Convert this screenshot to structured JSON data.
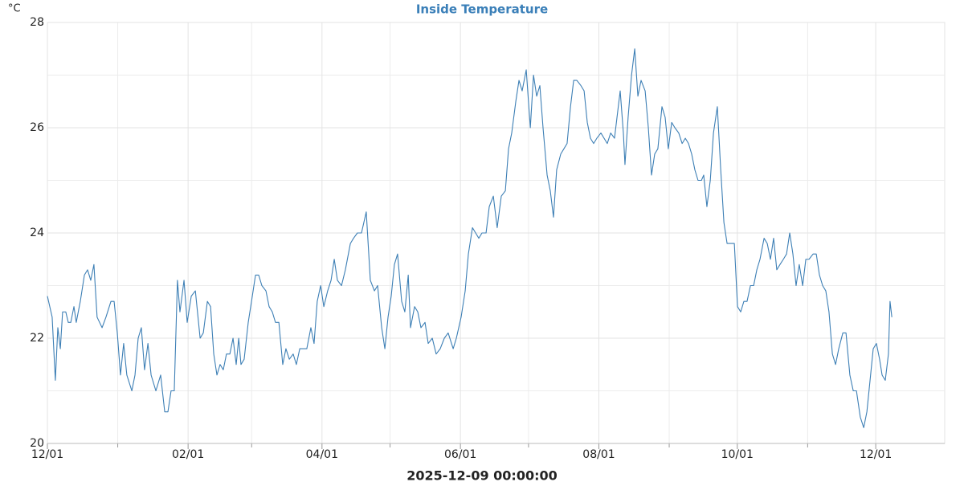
{
  "chart_data": {
    "type": "line",
    "title": "Inside Temperature",
    "y_label": "°C",
    "x_label": "2025-12-09 00:00:00",
    "color": "#3d7fb5",
    "grid": true,
    "xlim": [
      0,
      395.4
    ],
    "ylim": [
      20,
      28
    ],
    "yticks": [
      20,
      22,
      24,
      26,
      28
    ],
    "yminor_ticks": [
      21,
      23,
      25,
      27
    ],
    "xticks": [
      {
        "value": 0,
        "label": "12/01"
      },
      {
        "value": 62,
        "label": "02/01"
      },
      {
        "value": 121,
        "label": "04/01"
      },
      {
        "value": 182,
        "label": "06/01"
      },
      {
        "value": 243,
        "label": "08/01"
      },
      {
        "value": 304,
        "label": "10/01"
      },
      {
        "value": 365,
        "label": "12/01"
      }
    ],
    "xminor_ticks": [
      31,
      90,
      151,
      212,
      274,
      335
    ],
    "x": [
      0,
      2.1,
      3.5,
      4.6,
      5.7,
      6.7,
      8.1,
      9.2,
      10.3,
      11.7,
      12.7,
      14.5,
      16.3,
      17.7,
      19.1,
      20.5,
      21.9,
      24.1,
      25.8,
      28.0,
      29.4,
      30.8,
      32.2,
      33.6,
      35.0,
      37.2,
      38.6,
      40.0,
      41.4,
      42.8,
      44.3,
      45.7,
      47.8,
      49.9,
      51.7,
      53.1,
      54.5,
      55.9,
      57.3,
      58.4,
      60.2,
      61.6,
      63.4,
      65.2,
      67.3,
      68.7,
      70.5,
      71.9,
      73.3,
      74.7,
      76.1,
      77.5,
      78.9,
      80.4,
      81.8,
      83.2,
      84.3,
      85.3,
      86.7,
      88.5,
      90.3,
      91.7,
      93.1,
      94.5,
      96.3,
      97.7,
      99.1,
      100.5,
      102.0,
      103.7,
      105.1,
      106.6,
      108.3,
      109.7,
      111.2,
      112.9,
      114.3,
      116.1,
      117.5,
      118.9,
      120.4,
      121.8,
      123.5,
      125.0,
      126.4,
      127.8,
      129.6,
      131.3,
      133.5,
      134.9,
      136.6,
      138.4,
      140.5,
      142.3,
      144.1,
      145.5,
      147.3,
      148.7,
      150.1,
      151.5,
      152.9,
      154.3,
      156.1,
      157.5,
      159.0,
      160.0,
      161.8,
      163.2,
      164.6,
      166.4,
      167.8,
      169.6,
      171.3,
      173.1,
      174.9,
      176.6,
      178.8,
      180.2,
      182.3,
      184.1,
      185.5,
      187.3,
      188.7,
      190.1,
      191.5,
      193.3,
      194.7,
      196.5,
      198.2,
      200.0,
      201.8,
      203.2,
      204.6,
      206.4,
      207.8,
      209.2,
      211.0,
      212.8,
      214.2,
      215.6,
      217.0,
      218.4,
      220.2,
      221.6,
      223.0,
      224.4,
      226.2,
      227.6,
      229.0,
      230.5,
      231.9,
      233.3,
      235.1,
      236.5,
      237.9,
      239.3,
      240.7,
      242.1,
      243.9,
      245.3,
      246.7,
      248.2,
      249.9,
      251.0,
      252.4,
      253.8,
      254.5,
      255.9,
      257.4,
      258.8,
      260.2,
      261.6,
      263.4,
      264.8,
      266.2,
      267.6,
      269.0,
      270.8,
      272.2,
      273.6,
      275.1,
      276.5,
      278.2,
      279.7,
      281.1,
      282.5,
      283.9,
      285.3,
      286.7,
      288.2,
      289.2,
      290.6,
      292.1,
      293.5,
      295.2,
      296.7,
      298.1,
      299.5,
      300.9,
      302.7,
      304.1,
      305.5,
      306.9,
      308.3,
      309.8,
      311.2,
      312.6,
      314.0,
      315.8,
      317.2,
      318.6,
      320.0,
      321.4,
      322.8,
      324.3,
      325.7,
      327.1,
      328.5,
      329.9,
      331.3,
      332.8,
      334.2,
      335.6,
      337.4,
      338.8,
      340.2,
      341.6,
      343.0,
      344.4,
      345.9,
      347.3,
      348.7,
      350.5,
      351.9,
      353.6,
      355.1,
      356.5,
      358.2,
      359.7,
      361.1,
      362.5,
      363.9,
      365.3,
      366.7,
      367.8,
      369.2,
      370.6,
      371.3,
      372.1
    ],
    "values": [
      22.8,
      22.4,
      21.2,
      22.2,
      21.8,
      22.5,
      22.5,
      22.3,
      22.3,
      22.6,
      22.3,
      22.7,
      23.2,
      23.3,
      23.1,
      23.4,
      22.4,
      22.2,
      22.4,
      22.7,
      22.7,
      22.1,
      21.3,
      21.9,
      21.3,
      21.0,
      21.3,
      22.0,
      22.2,
      21.4,
      21.9,
      21.3,
      21.0,
      21.3,
      20.6,
      20.6,
      21.0,
      21.0,
      23.1,
      22.5,
      23.1,
      22.3,
      22.8,
      22.9,
      22.0,
      22.1,
      22.7,
      22.6,
      21.7,
      21.3,
      21.5,
      21.4,
      21.7,
      21.7,
      22.0,
      21.5,
      22.0,
      21.5,
      21.6,
      22.3,
      22.8,
      23.2,
      23.2,
      23.0,
      22.9,
      22.6,
      22.5,
      22.3,
      22.3,
      21.5,
      21.8,
      21.6,
      21.7,
      21.5,
      21.8,
      21.8,
      21.8,
      22.2,
      21.9,
      22.7,
      23.0,
      22.6,
      22.9,
      23.1,
      23.5,
      23.1,
      23.0,
      23.3,
      23.8,
      23.9,
      24.0,
      24.0,
      24.4,
      23.1,
      22.9,
      23.0,
      22.2,
      21.8,
      22.4,
      22.8,
      23.4,
      23.6,
      22.7,
      22.5,
      23.2,
      22.2,
      22.6,
      22.5,
      22.2,
      22.3,
      21.9,
      22.0,
      21.7,
      21.8,
      22.0,
      22.1,
      21.8,
      22.0,
      22.4,
      22.9,
      23.6,
      24.1,
      24.0,
      23.9,
      24.0,
      24.0,
      24.5,
      24.7,
      24.1,
      24.7,
      24.8,
      25.6,
      25.9,
      26.5,
      26.9,
      26.7,
      27.1,
      26.0,
      27.0,
      26.6,
      26.8,
      26.0,
      25.1,
      24.8,
      24.3,
      25.2,
      25.5,
      25.6,
      25.7,
      26.4,
      26.9,
      26.9,
      26.8,
      26.7,
      26.1,
      25.8,
      25.7,
      25.8,
      25.9,
      25.8,
      25.7,
      25.9,
      25.8,
      26.2,
      26.7,
      25.9,
      25.3,
      26.2,
      27.0,
      27.5,
      26.6,
      26.9,
      26.7,
      26.0,
      25.1,
      25.5,
      25.6,
      26.4,
      26.2,
      25.6,
      26.1,
      26.0,
      25.9,
      25.7,
      25.8,
      25.7,
      25.5,
      25.2,
      25.0,
      25.0,
      25.1,
      24.5,
      25.0,
      25.9,
      26.4,
      25.2,
      24.2,
      23.8,
      23.8,
      23.8,
      22.6,
      22.5,
      22.7,
      22.7,
      23.0,
      23.0,
      23.3,
      23.5,
      23.9,
      23.8,
      23.5,
      23.9,
      23.3,
      23.4,
      23.5,
      23.6,
      24.0,
      23.6,
      23.0,
      23.4,
      23.0,
      23.5,
      23.5,
      23.6,
      23.6,
      23.2,
      23.0,
      22.9,
      22.5,
      21.7,
      21.5,
      21.8,
      22.1,
      22.1,
      21.3,
      21.0,
      21.0,
      20.5,
      20.3,
      20.6,
      21.2,
      21.8,
      21.9,
      21.6,
      21.3,
      21.2,
      21.7,
      22.7,
      22.4
    ]
  }
}
